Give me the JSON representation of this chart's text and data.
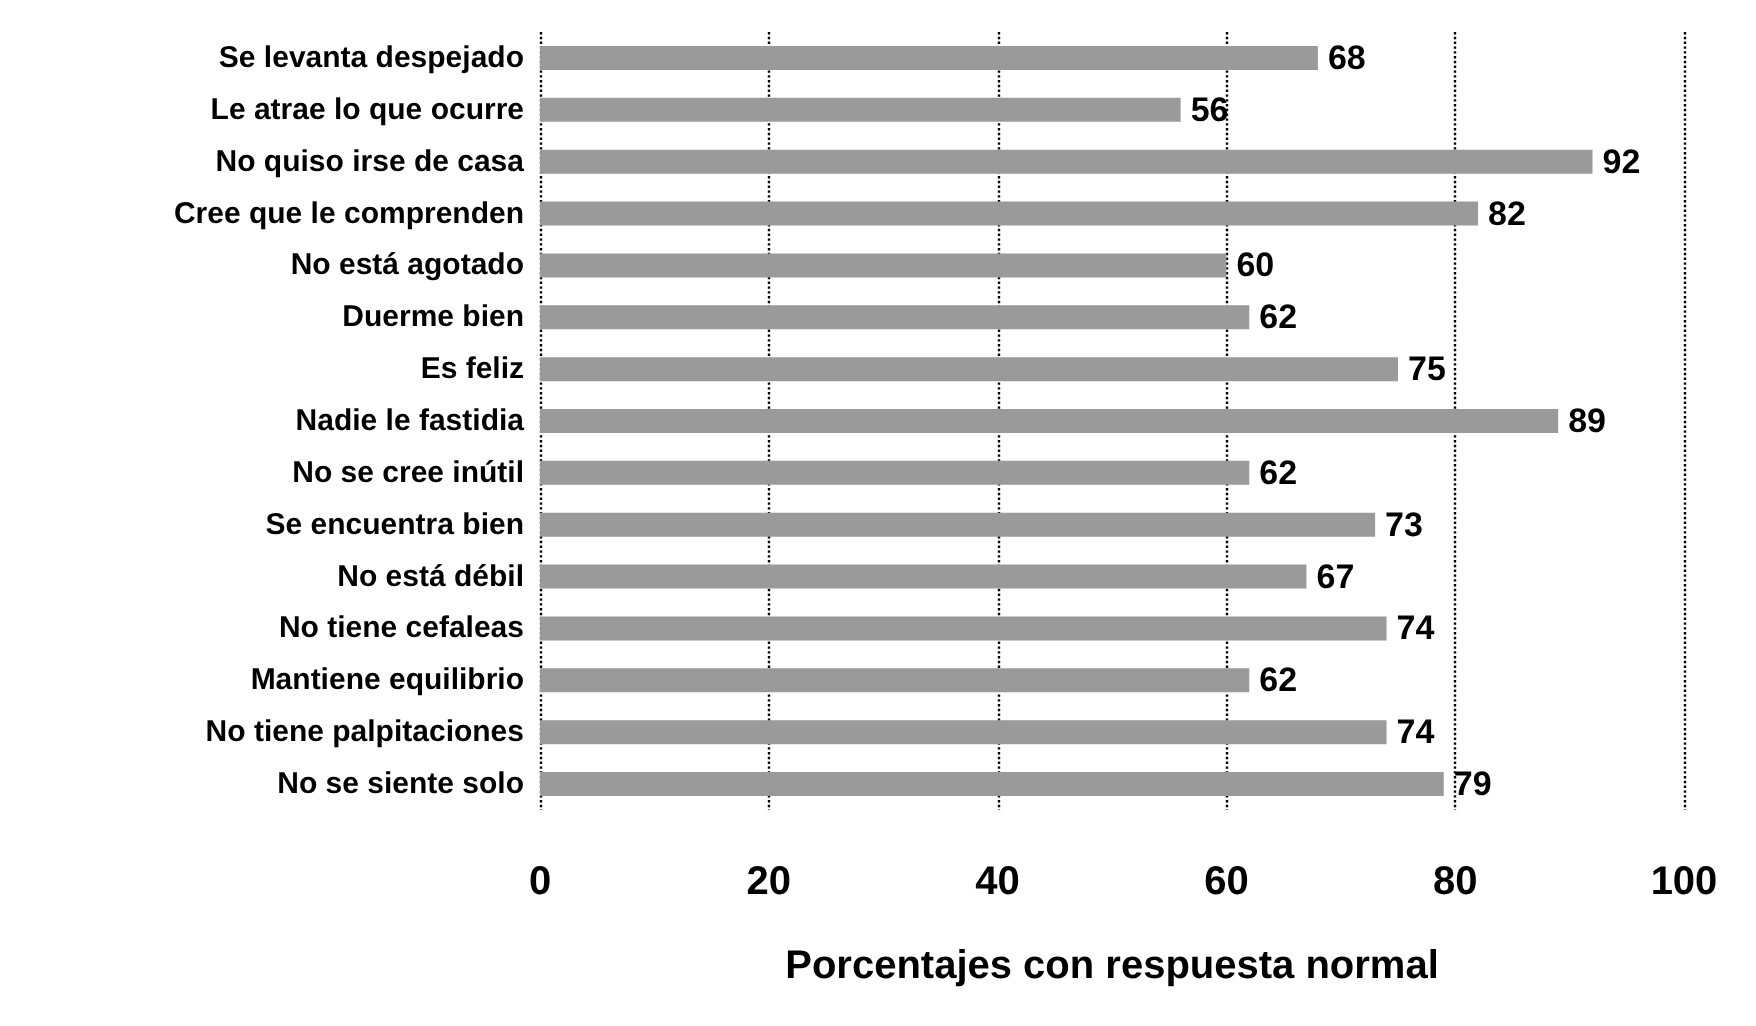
{
  "chart_data": {
    "type": "bar",
    "orientation": "horizontal",
    "xlabel": "Porcentajes con respuesta normal",
    "categories": [
      "Se levanta despejado",
      "Le atrae lo que ocurre",
      "No quiso irse de casa",
      "Cree que le comprenden",
      "No está agotado",
      "Duerme bien",
      "Es feliz",
      "Nadie le fastidia",
      "No se cree inútil",
      "Se encuentra bien",
      "No está débil",
      "No tiene cefaleas",
      "Mantiene equilibrio",
      "No tiene palpitaciones",
      "No se siente solo"
    ],
    "values": [
      68,
      56,
      92,
      82,
      60,
      62,
      75,
      89,
      62,
      73,
      67,
      74,
      62,
      74,
      79
    ],
    "color": "#9a9a9a",
    "xlim": [
      0,
      100
    ],
    "xticks": [
      0,
      20,
      40,
      60,
      80,
      100
    ],
    "grid": "x",
    "data_labels": true
  }
}
